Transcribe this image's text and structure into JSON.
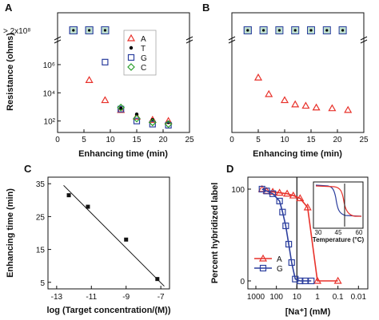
{
  "chart_data": [
    {
      "panel": "A",
      "type": "scatter",
      "xlabel": "Enhancing time (min)",
      "ylabel": "Resistance (ohms)",
      "top_label": "> 2x10⁸",
      "xlim": [
        0,
        25
      ],
      "xticks": [
        "0",
        "5",
        "10",
        "15",
        "20",
        "25"
      ],
      "yticks": [
        "10²",
        "10⁴",
        "10⁶"
      ],
      "legend": [
        "A",
        "T",
        "G",
        "C"
      ],
      "series": [
        {
          "name": "A",
          "color": "#e8312a",
          "marker": "triangle",
          "points": [
            [
              3,
              "top"
            ],
            [
              6,
              80000
            ],
            [
              9,
              3000
            ],
            [
              12,
              600
            ],
            [
              15,
              200
            ],
            [
              18,
              120
            ],
            [
              21,
              100
            ]
          ]
        },
        {
          "name": "T",
          "color": "#000000",
          "marker": "dot",
          "points": [
            [
              3,
              "top"
            ],
            [
              6,
              "top"
            ],
            [
              9,
              "top"
            ],
            [
              12,
              800
            ],
            [
              15,
              300
            ],
            [
              18,
              120
            ],
            [
              21,
              80
            ]
          ]
        },
        {
          "name": "G",
          "color": "#2c3f9e",
          "marker": "square",
          "points": [
            [
              3,
              "top"
            ],
            [
              6,
              "top"
            ],
            [
              9,
              1500000
            ],
            [
              12,
              700
            ],
            [
              15,
              100
            ],
            [
              18,
              60
            ],
            [
              21,
              50
            ]
          ]
        },
        {
          "name": "C",
          "color": "#2ca02c",
          "marker": "diamond",
          "points": [
            [
              3,
              "top"
            ],
            [
              6,
              "top"
            ],
            [
              9,
              "top"
            ],
            [
              12,
              900
            ],
            [
              15,
              150
            ],
            [
              18,
              80
            ],
            [
              21,
              60
            ]
          ]
        }
      ]
    },
    {
      "panel": "B",
      "type": "scatter",
      "xlabel": "Enhancing time (min)",
      "xlim": [
        0,
        25
      ],
      "xticks": [
        "0",
        "5",
        "10",
        "15",
        "20",
        "25"
      ],
      "series": [
        {
          "name": "A",
          "color": "#e8312a",
          "marker": "triangle",
          "points": [
            [
              5,
              120000
            ],
            [
              7,
              8000
            ],
            [
              10,
              3000
            ],
            [
              12,
              1500
            ],
            [
              14,
              1200
            ],
            [
              16,
              900
            ],
            [
              19,
              800
            ],
            [
              22,
              600
            ]
          ]
        },
        {
          "name": "T",
          "color": "#000000",
          "marker": "dot",
          "points": [
            [
              3,
              "top"
            ]
          ]
        },
        {
          "name": "G",
          "color": "#2c3f9e",
          "marker": "square",
          "points": [
            [
              3,
              "top"
            ],
            [
              6,
              "top"
            ],
            [
              9,
              "top"
            ],
            [
              12,
              "top"
            ],
            [
              15,
              "top"
            ],
            [
              18,
              "top"
            ],
            [
              21,
              "top"
            ]
          ]
        }
      ]
    },
    {
      "panel": "C",
      "type": "scatter",
      "xlabel": "log (Target concentration/(M))",
      "ylabel": "Enhancing time (min)",
      "xlim": [
        -13.5,
        -6.5
      ],
      "ylim": [
        3,
        37
      ],
      "xticks": [
        "-13",
        "-11",
        "-9",
        "-7"
      ],
      "yticks": [
        "5",
        "15",
        "25",
        "35"
      ],
      "points": [
        [
          -12.3,
          31.5
        ],
        [
          -11.2,
          28
        ],
        [
          -9.0,
          18
        ],
        [
          -7.2,
          6
        ]
      ],
      "fit_line": [
        [
          -12.6,
          34.5
        ],
        [
          -6.8,
          3.8
        ]
      ]
    },
    {
      "panel": "D",
      "type": "line",
      "xlabel": "[Na⁺] (mM)",
      "ylabel": "Percent hybridized label",
      "xticks": [
        "1000",
        "100",
        "10",
        "1",
        "0.1",
        "0.01"
      ],
      "yticks": [
        "0",
        "100"
      ],
      "legend": [
        "A",
        "G"
      ],
      "series": [
        {
          "name": "A",
          "color": "#e8312a",
          "marker": "triangle",
          "points": [
            [
              500,
              100
            ],
            [
              300,
              98
            ],
            [
              150,
              97
            ],
            [
              70,
              96
            ],
            [
              30,
              95
            ],
            [
              15,
              93
            ],
            [
              7,
              90
            ],
            [
              3,
              80
            ],
            [
              1,
              0
            ],
            [
              0.1,
              0
            ]
          ]
        },
        {
          "name": "G",
          "color": "#2c3f9e",
          "marker": "square",
          "points": [
            [
              500,
              100
            ],
            [
              300,
              98
            ],
            [
              150,
              95
            ],
            [
              70,
              87
            ],
            [
              50,
              75
            ],
            [
              35,
              60
            ],
            [
              25,
              40
            ],
            [
              18,
              20
            ],
            [
              12,
              2
            ],
            [
              7,
              0
            ],
            [
              4,
              0
            ],
            [
              2,
              0
            ]
          ]
        }
      ],
      "inset": {
        "xlabel": "Temperature (°C)",
        "xticks": [
          "30",
          "45",
          "60"
        ]
      }
    }
  ]
}
